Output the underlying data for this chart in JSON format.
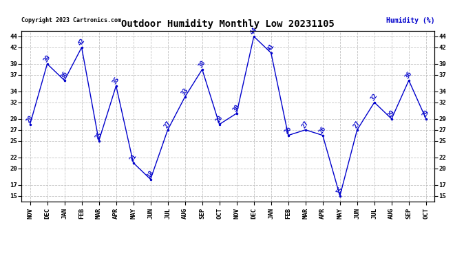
{
  "title": "Outdoor Humidity Monthly Low 20231105",
  "copyright": "Copyright 2023 Cartronics.com",
  "humidity_label": "Humidity (%)",
  "months": [
    "NOV",
    "DEC",
    "JAN",
    "FEB",
    "MAR",
    "APR",
    "MAY",
    "JUN",
    "JUL",
    "AUG",
    "SEP",
    "OCT",
    "NOV",
    "DEC",
    "JAN",
    "FEB",
    "MAR",
    "APR",
    "MAY",
    "JUN",
    "JUL",
    "AUG",
    "SEP",
    "OCT"
  ],
  "values": [
    28,
    39,
    36,
    42,
    25,
    35,
    21,
    18,
    27,
    33,
    38,
    28,
    30,
    44,
    41,
    26,
    27,
    26,
    15,
    27,
    32,
    29,
    36,
    29
  ],
  "ylim": [
    14,
    45
  ],
  "yticks": [
    15,
    17,
    20,
    22,
    25,
    27,
    29,
    32,
    34,
    37,
    39,
    42,
    44
  ],
  "line_color": "#0000cc",
  "marker_color": "#0000cc",
  "title_fontsize": 10,
  "label_fontsize": 6.5,
  "tick_fontsize": 6.5,
  "copyright_fontsize": 6,
  "humidity_label_fontsize": 7,
  "bg_color": "#ffffff",
  "grid_color": "#bbbbbb"
}
